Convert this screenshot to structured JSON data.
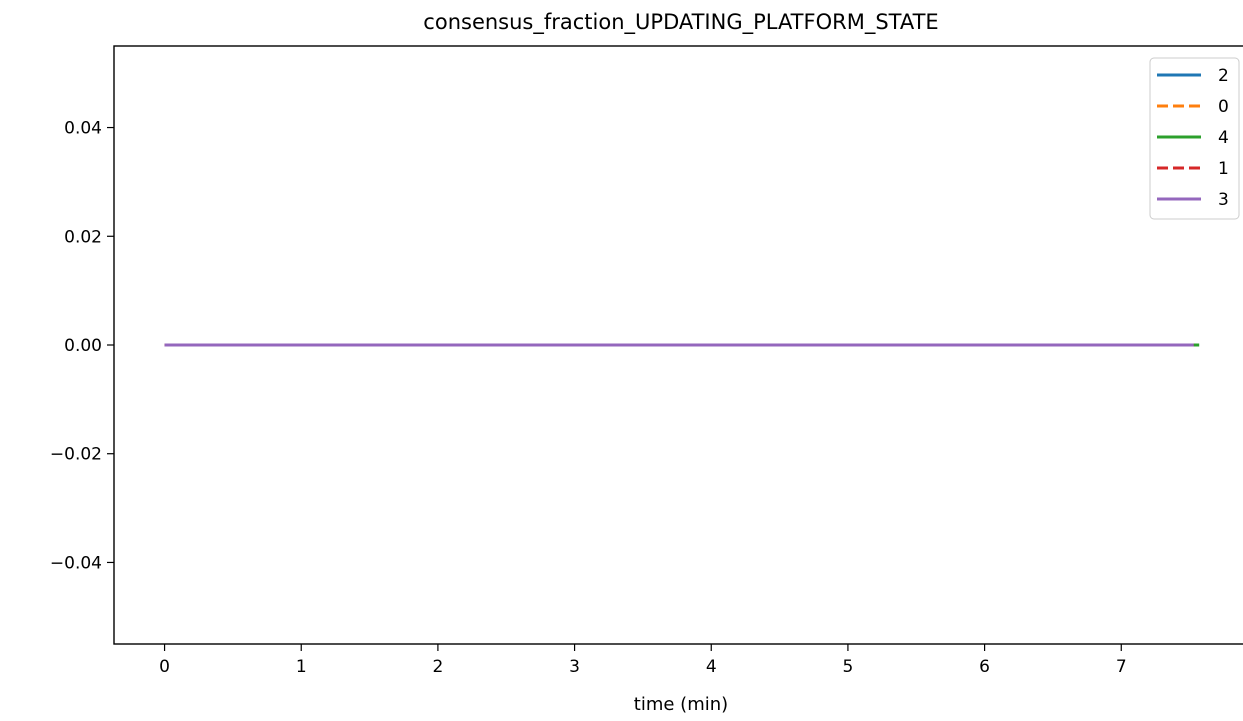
{
  "chart_data": {
    "type": "line",
    "title": "consensus_fraction_UPDATING_PLATFORM_STATE",
    "xlabel": "time (min)",
    "ylabel": "",
    "xlim": [
      -0.37,
      7.92
    ],
    "ylim": [
      -0.055,
      0.055
    ],
    "x_ticks": [
      0,
      1,
      2,
      3,
      4,
      5,
      6,
      7
    ],
    "x_tick_labels": [
      "0",
      "1",
      "2",
      "3",
      "4",
      "5",
      "6",
      "7"
    ],
    "y_ticks": [
      0.04,
      0.02,
      0.0,
      -0.02,
      -0.04
    ],
    "y_tick_labels": [
      "0.04",
      "0.02",
      "0.00",
      "−0.02",
      "−0.04"
    ],
    "grid": false,
    "legend_position": "top-right",
    "series": [
      {
        "name": "2",
        "color": "#1f77b4",
        "dash": "solid",
        "x": [
          0,
          7.53
        ],
        "y": [
          0,
          0
        ]
      },
      {
        "name": "0",
        "color": "#ff7f0e",
        "dash": "dashed",
        "x": [
          0,
          7.53
        ],
        "y": [
          0,
          0
        ]
      },
      {
        "name": "4",
        "color": "#2ca02c",
        "dash": "solid",
        "x": [
          0,
          7.57
        ],
        "y": [
          0,
          0
        ]
      },
      {
        "name": "1",
        "color": "#d62728",
        "dash": "dashed",
        "x": [
          0,
          7.53
        ],
        "y": [
          0,
          0
        ]
      },
      {
        "name": "3",
        "color": "#9467bd",
        "dash": "solid",
        "x": [
          0,
          7.53
        ],
        "y": [
          0,
          0
        ]
      }
    ]
  }
}
